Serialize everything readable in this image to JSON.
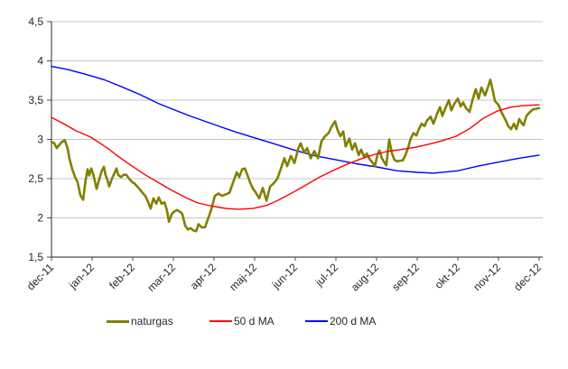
{
  "chart_data": {
    "type": "line",
    "title": "",
    "x_axis": {
      "tick_labels": [
        "dec-11",
        "jan-12",
        "feb-12",
        "mar-12",
        "apr-12",
        "maj-12",
        "jun-12",
        "jul-12",
        "aug-12",
        "sep-12",
        "okt-12",
        "nov-12",
        "dec-12"
      ],
      "range_months": [
        0,
        12
      ]
    },
    "y_axis": {
      "tick_labels": [
        "4,5",
        "4",
        "3,5",
        "3",
        "2,5",
        "2",
        "1,5"
      ],
      "tick_values": [
        4.5,
        4.0,
        3.5,
        3.0,
        2.5,
        2.0,
        1.5
      ],
      "range": [
        1.5,
        4.5
      ]
    },
    "grid": true,
    "legend_position": "bottom",
    "series": [
      {
        "name": "naturgas",
        "color": "#808000",
        "stroke_width": 2.6,
        "points": [
          [
            0.0,
            2.97
          ],
          [
            0.07,
            2.95
          ],
          [
            0.13,
            2.89
          ],
          [
            0.24,
            2.96
          ],
          [
            0.33,
            2.99
          ],
          [
            0.4,
            2.88
          ],
          [
            0.44,
            2.76
          ],
          [
            0.51,
            2.62
          ],
          [
            0.58,
            2.52
          ],
          [
            0.64,
            2.46
          ],
          [
            0.71,
            2.29
          ],
          [
            0.78,
            2.23
          ],
          [
            0.84,
            2.48
          ],
          [
            0.89,
            2.62
          ],
          [
            0.93,
            2.54
          ],
          [
            0.98,
            2.63
          ],
          [
            1.02,
            2.57
          ],
          [
            1.07,
            2.46
          ],
          [
            1.11,
            2.37
          ],
          [
            1.18,
            2.5
          ],
          [
            1.24,
            2.6
          ],
          [
            1.29,
            2.65
          ],
          [
            1.33,
            2.55
          ],
          [
            1.38,
            2.48
          ],
          [
            1.42,
            2.4
          ],
          [
            1.49,
            2.5
          ],
          [
            1.56,
            2.58
          ],
          [
            1.6,
            2.63
          ],
          [
            1.64,
            2.55
          ],
          [
            1.71,
            2.52
          ],
          [
            1.78,
            2.55
          ],
          [
            1.84,
            2.55
          ],
          [
            1.91,
            2.5
          ],
          [
            1.98,
            2.46
          ],
          [
            2.04,
            2.44
          ],
          [
            2.11,
            2.4
          ],
          [
            2.18,
            2.36
          ],
          [
            2.24,
            2.32
          ],
          [
            2.31,
            2.28
          ],
          [
            2.38,
            2.2
          ],
          [
            2.44,
            2.12
          ],
          [
            2.51,
            2.25
          ],
          [
            2.58,
            2.18
          ],
          [
            2.64,
            2.26
          ],
          [
            2.71,
            2.18
          ],
          [
            2.78,
            2.2
          ],
          [
            2.84,
            2.1
          ],
          [
            2.89,
            1.95
          ],
          [
            2.96,
            2.05
          ],
          [
            3.02,
            2.08
          ],
          [
            3.09,
            2.1
          ],
          [
            3.16,
            2.08
          ],
          [
            3.22,
            2.05
          ],
          [
            3.29,
            1.9
          ],
          [
            3.36,
            1.85
          ],
          [
            3.42,
            1.87
          ],
          [
            3.49,
            1.84
          ],
          [
            3.56,
            1.83
          ],
          [
            3.62,
            1.92
          ],
          [
            3.69,
            1.88
          ],
          [
            3.78,
            1.88
          ],
          [
            3.84,
            1.97
          ],
          [
            3.93,
            2.1
          ],
          [
            4.02,
            2.28
          ],
          [
            4.11,
            2.31
          ],
          [
            4.2,
            2.28
          ],
          [
            4.29,
            2.3
          ],
          [
            4.38,
            2.32
          ],
          [
            4.47,
            2.45
          ],
          [
            4.56,
            2.58
          ],
          [
            4.62,
            2.52
          ],
          [
            4.69,
            2.62
          ],
          [
            4.76,
            2.63
          ],
          [
            4.82,
            2.55
          ],
          [
            4.89,
            2.45
          ],
          [
            4.96,
            2.37
          ],
          [
            5.02,
            2.33
          ],
          [
            5.11,
            2.25
          ],
          [
            5.2,
            2.38
          ],
          [
            5.29,
            2.22
          ],
          [
            5.38,
            2.4
          ],
          [
            5.47,
            2.44
          ],
          [
            5.56,
            2.5
          ],
          [
            5.64,
            2.62
          ],
          [
            5.73,
            2.76
          ],
          [
            5.8,
            2.66
          ],
          [
            5.89,
            2.79
          ],
          [
            5.98,
            2.7
          ],
          [
            6.07,
            2.88
          ],
          [
            6.13,
            2.95
          ],
          [
            6.22,
            2.83
          ],
          [
            6.29,
            2.89
          ],
          [
            6.38,
            2.76
          ],
          [
            6.47,
            2.85
          ],
          [
            6.56,
            2.76
          ],
          [
            6.64,
            2.97
          ],
          [
            6.73,
            3.04
          ],
          [
            6.82,
            3.08
          ],
          [
            6.89,
            3.16
          ],
          [
            6.98,
            3.23
          ],
          [
            7.04,
            3.12
          ],
          [
            7.11,
            3.04
          ],
          [
            7.18,
            3.1
          ],
          [
            7.24,
            2.91
          ],
          [
            7.33,
            3.01
          ],
          [
            7.4,
            2.87
          ],
          [
            7.47,
            2.95
          ],
          [
            7.56,
            2.8
          ],
          [
            7.62,
            2.87
          ],
          [
            7.69,
            2.78
          ],
          [
            7.76,
            2.82
          ],
          [
            7.84,
            2.74
          ],
          [
            7.91,
            2.7
          ],
          [
            7.96,
            2.66
          ],
          [
            8.02,
            2.8
          ],
          [
            8.07,
            2.86
          ],
          [
            8.13,
            2.76
          ],
          [
            8.2,
            2.7
          ],
          [
            8.24,
            2.67
          ],
          [
            8.31,
            3.0
          ],
          [
            8.38,
            2.82
          ],
          [
            8.44,
            2.74
          ],
          [
            8.51,
            2.72
          ],
          [
            8.58,
            2.73
          ],
          [
            8.64,
            2.73
          ],
          [
            8.71,
            2.8
          ],
          [
            8.78,
            2.9
          ],
          [
            8.84,
            3.01
          ],
          [
            8.91,
            3.08
          ],
          [
            8.98,
            3.05
          ],
          [
            9.04,
            3.13
          ],
          [
            9.11,
            3.2
          ],
          [
            9.18,
            3.17
          ],
          [
            9.24,
            3.24
          ],
          [
            9.33,
            3.29
          ],
          [
            9.4,
            3.2
          ],
          [
            9.49,
            3.33
          ],
          [
            9.56,
            3.41
          ],
          [
            9.62,
            3.3
          ],
          [
            9.71,
            3.42
          ],
          [
            9.78,
            3.5
          ],
          [
            9.84,
            3.37
          ],
          [
            9.91,
            3.45
          ],
          [
            10.0,
            3.52
          ],
          [
            10.07,
            3.42
          ],
          [
            10.13,
            3.47
          ],
          [
            10.2,
            3.4
          ],
          [
            10.29,
            3.35
          ],
          [
            10.36,
            3.5
          ],
          [
            10.44,
            3.64
          ],
          [
            10.51,
            3.52
          ],
          [
            10.58,
            3.66
          ],
          [
            10.67,
            3.56
          ],
          [
            10.73,
            3.65
          ],
          [
            10.8,
            3.76
          ],
          [
            10.87,
            3.6
          ],
          [
            10.91,
            3.49
          ],
          [
            11.0,
            3.44
          ],
          [
            11.07,
            3.35
          ],
          [
            11.11,
            3.31
          ],
          [
            11.18,
            3.24
          ],
          [
            11.24,
            3.17
          ],
          [
            11.31,
            3.13
          ],
          [
            11.38,
            3.2
          ],
          [
            11.44,
            3.13
          ],
          [
            11.51,
            3.26
          ],
          [
            11.58,
            3.2
          ],
          [
            11.62,
            3.18
          ],
          [
            11.69,
            3.3
          ],
          [
            11.76,
            3.34
          ],
          [
            11.84,
            3.38
          ],
          [
            11.93,
            3.39
          ],
          [
            12.0,
            3.4
          ]
        ]
      },
      {
        "name": "50 d MA",
        "color": "#ff0000",
        "stroke_width": 1.4,
        "points": [
          [
            0.0,
            3.28
          ],
          [
            0.3,
            3.2
          ],
          [
            0.6,
            3.11
          ],
          [
            0.96,
            3.03
          ],
          [
            1.2,
            2.95
          ],
          [
            1.4,
            2.88
          ],
          [
            1.6,
            2.8
          ],
          [
            1.84,
            2.71
          ],
          [
            2.1,
            2.62
          ],
          [
            2.3,
            2.55
          ],
          [
            2.6,
            2.46
          ],
          [
            2.96,
            2.35
          ],
          [
            3.3,
            2.26
          ],
          [
            3.6,
            2.19
          ],
          [
            3.96,
            2.15
          ],
          [
            4.3,
            2.12
          ],
          [
            4.6,
            2.11
          ],
          [
            4.96,
            2.12
          ],
          [
            5.3,
            2.16
          ],
          [
            5.6,
            2.23
          ],
          [
            5.96,
            2.33
          ],
          [
            6.3,
            2.43
          ],
          [
            6.6,
            2.52
          ],
          [
            6.96,
            2.61
          ],
          [
            7.3,
            2.69
          ],
          [
            7.6,
            2.75
          ],
          [
            7.96,
            2.81
          ],
          [
            8.3,
            2.85
          ],
          [
            8.6,
            2.87
          ],
          [
            8.96,
            2.9
          ],
          [
            9.3,
            2.94
          ],
          [
            9.6,
            2.98
          ],
          [
            9.96,
            3.04
          ],
          [
            10.3,
            3.14
          ],
          [
            10.6,
            3.26
          ],
          [
            10.96,
            3.36
          ],
          [
            11.3,
            3.41
          ],
          [
            11.6,
            3.43
          ],
          [
            12.0,
            3.44
          ]
        ]
      },
      {
        "name": "200 d MA",
        "color": "#0000ff",
        "stroke_width": 1.4,
        "points": [
          [
            0.0,
            3.93
          ],
          [
            0.4,
            3.89
          ],
          [
            0.84,
            3.83
          ],
          [
            1.3,
            3.76
          ],
          [
            1.73,
            3.67
          ],
          [
            2.18,
            3.57
          ],
          [
            2.62,
            3.46
          ],
          [
            3.0,
            3.38
          ],
          [
            3.4,
            3.3
          ],
          [
            4.0,
            3.19
          ],
          [
            4.5,
            3.1
          ],
          [
            5.0,
            3.02
          ],
          [
            5.5,
            2.94
          ],
          [
            6.0,
            2.86
          ],
          [
            6.5,
            2.79
          ],
          [
            7.0,
            2.74
          ],
          [
            7.5,
            2.69
          ],
          [
            8.0,
            2.65
          ],
          [
            8.5,
            2.6
          ],
          [
            9.0,
            2.58
          ],
          [
            9.4,
            2.57
          ],
          [
            10.0,
            2.6
          ],
          [
            10.5,
            2.66
          ],
          [
            11.0,
            2.71
          ],
          [
            11.5,
            2.76
          ],
          [
            12.0,
            2.8
          ]
        ]
      }
    ]
  },
  "colors": {
    "background": "#ffffff",
    "grid": "#c6c6c6",
    "axis": "#4d4d4d",
    "text": "#262626"
  }
}
